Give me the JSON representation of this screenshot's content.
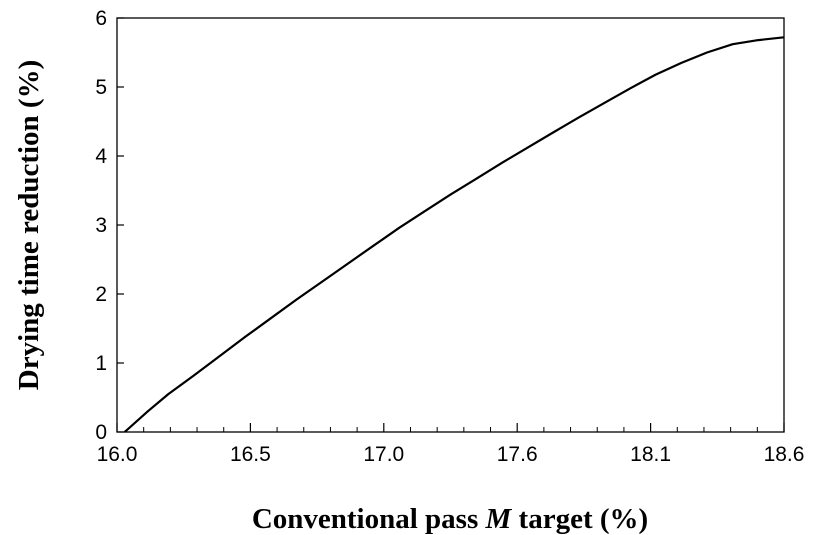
{
  "chart_data": {
    "type": "line",
    "title": "",
    "xlabel": {
      "before": "Conventional pass ",
      "italic": "M",
      "after": " target (%)"
    },
    "ylabel": "Drying time reduction (%)",
    "xlim": [
      16.0,
      18.6
    ],
    "ylim": [
      0,
      6
    ],
    "x_tick_labels": [
      "16.0",
      "16.5",
      "17.0",
      "17.6",
      "18.1",
      "18.6"
    ],
    "y_tick_labels": [
      "0",
      "1",
      "2",
      "3",
      "4",
      "5",
      "6"
    ],
    "grid": false,
    "legend": "none",
    "line_color": "#000000",
    "series": [
      {
        "x": [
          16.03,
          16.12,
          16.2,
          16.3,
          16.4,
          16.5,
          16.6,
          16.7,
          16.8,
          16.9,
          17.0,
          17.1,
          17.2,
          17.3,
          17.4,
          17.5,
          17.6,
          17.7,
          17.8,
          17.9,
          18.0,
          18.1,
          18.2,
          18.3,
          18.4,
          18.5,
          18.6
        ],
        "values": [
          0.0,
          0.3,
          0.55,
          0.82,
          1.1,
          1.38,
          1.65,
          1.92,
          2.18,
          2.44,
          2.7,
          2.96,
          3.2,
          3.44,
          3.67,
          3.9,
          4.12,
          4.34,
          4.56,
          4.77,
          4.98,
          5.18,
          5.35,
          5.5,
          5.62,
          5.68,
          5.72
        ]
      }
    ]
  }
}
